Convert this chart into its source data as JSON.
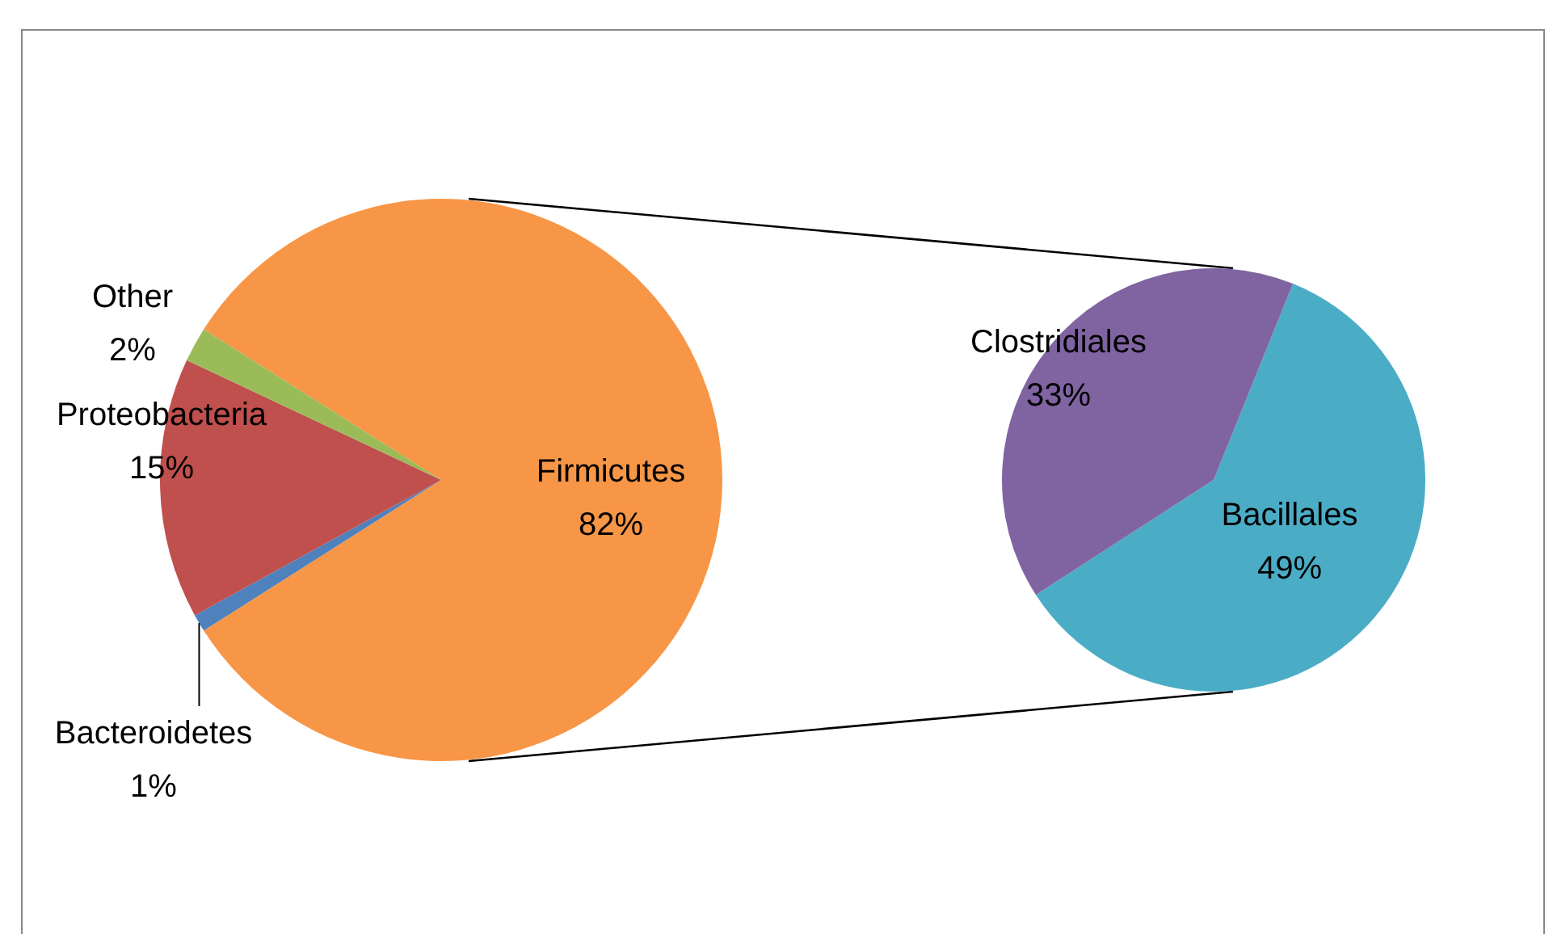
{
  "chart_data": [
    {
      "type": "pie",
      "categories": [
        "Firmicutes",
        "Bacteroidetes",
        "Proteobacteria",
        "Other"
      ],
      "values": [
        82,
        1,
        15,
        2
      ],
      "colors": [
        "#f79646",
        "#4f81bd",
        "#c0504d",
        "#9bbb59"
      ],
      "value_labels": [
        "82%",
        "1%",
        "15%",
        "2%"
      ]
    },
    {
      "type": "pie",
      "categories": [
        "Bacillales",
        "Clostridiales"
      ],
      "values": [
        49,
        33
      ],
      "colors": [
        "#4bacc6",
        "#8064a2"
      ],
      "value_labels": [
        "49%",
        "33%"
      ]
    }
  ]
}
